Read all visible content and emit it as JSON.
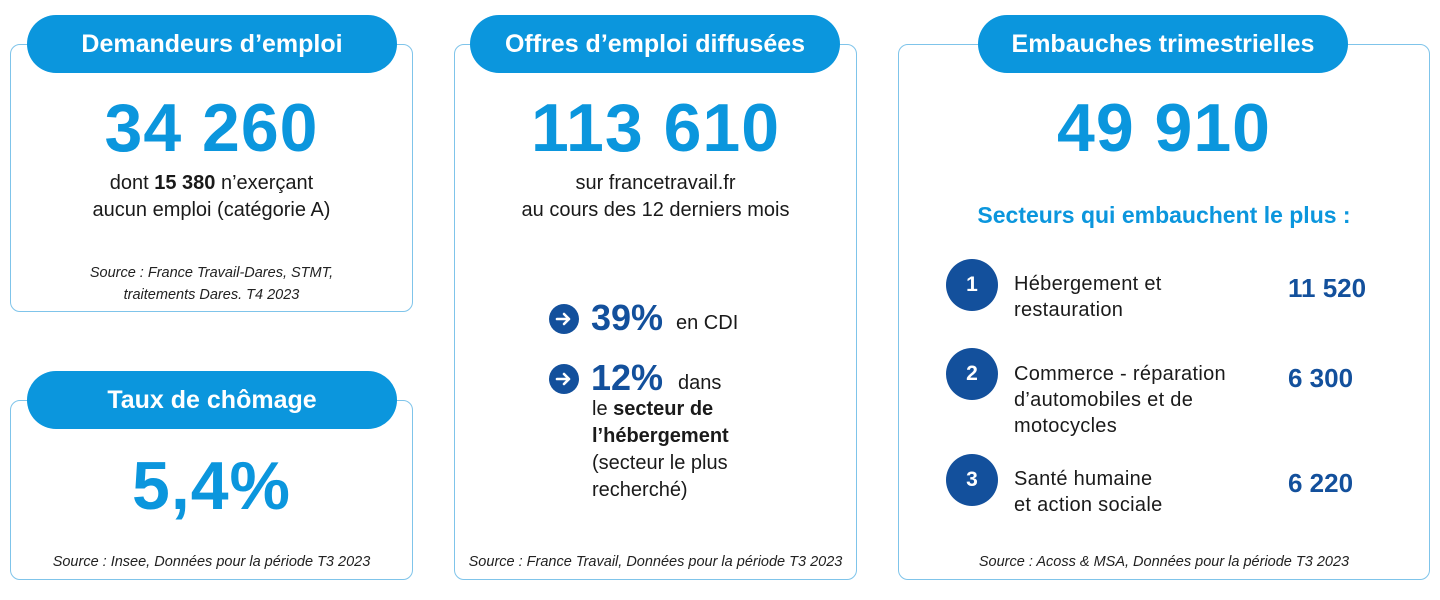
{
  "colors": {
    "accent": "#0b96dd",
    "dark_blue": "#13509c",
    "border": "#7fc4ea"
  },
  "demandeurs": {
    "title": "Demandeurs d’emploi",
    "value": "34 260",
    "text_pre": "dont ",
    "text_bold": "15 380",
    "text_post": " n’exerçant",
    "text_line2": "aucun emploi (catégorie A)",
    "source_line1": "Source : France Travail-Dares, STMT,",
    "source_line2": "traitements Dares. T4 2023"
  },
  "chomage": {
    "title": "Taux de chômage",
    "value": "5,4%",
    "source": "Source : Insee, Données pour la période T3 2023"
  },
  "offres": {
    "title": "Offres d’emploi diffusées",
    "value": "113 610",
    "line1": "sur francetravail.fr",
    "line2": "au cours des 12 derniers mois",
    "stat1": {
      "icon": "arrow-right-icon",
      "pct": "39%",
      "text": "en CDI"
    },
    "stat2": {
      "icon": "arrow-right-icon",
      "pct": "12%",
      "text_a": "dans",
      "text_b": "le ",
      "text_bold_1": "secteur de",
      "text_bold_2": "l’hébergement",
      "text_c": "(secteur le plus",
      "text_d": "recherché)"
    },
    "source": "Source : France Travail, Données pour la période T3 2023"
  },
  "embauches": {
    "title": "Embauches trimestrielles",
    "value": "49 910",
    "subtitle": "Secteurs qui embauchent le plus :",
    "sectors": [
      {
        "rank": "1",
        "line1": "Hébergement et",
        "line2": "restauration",
        "line3": "",
        "value": "11 520"
      },
      {
        "rank": "2",
        "line1": "Commerce - réparation",
        "line2": "d’automobiles et de",
        "line3": "motocycles",
        "value": "6 300"
      },
      {
        "rank": "3",
        "line1": "Santé humaine",
        "line2": "et action sociale",
        "line3": "",
        "value": "6 220"
      }
    ],
    "source": "Source : Acoss & MSA, Données pour la période T3 2023"
  }
}
